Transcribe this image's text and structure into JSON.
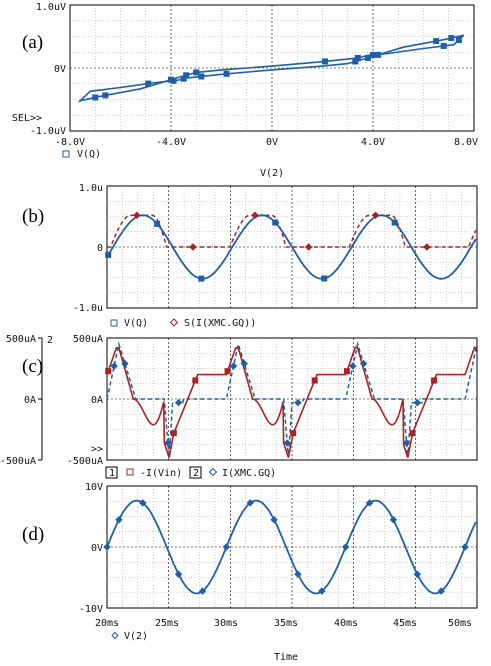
{
  "colors": {
    "blue": "#1f5fa6",
    "red": "#a82323",
    "text": "#111111",
    "axis": "#000000"
  },
  "chart_data": [
    {
      "id": "a",
      "type": "line",
      "panel_label": "(a)",
      "xlim": [
        -8,
        8
      ],
      "ylim": [
        -1,
        1
      ],
      "xticks": [
        "-8.0V",
        "-4.0V",
        "0V",
        "4.0V",
        "8.0V"
      ],
      "yticks": [
        "1.0uV",
        "0V",
        "-1.0uV"
      ],
      "xlabel": "V(2)",
      "sel_label": "SEL>>",
      "legend": [
        {
          "marker": "square-open",
          "text": "V(Q)",
          "color": "#1f5fa6"
        }
      ],
      "series": [
        {
          "name": "V(Q)",
          "color": "#1f5fa6",
          "marker": "square",
          "x": [
            7.6,
            6.8,
            5.2,
            3.8,
            3.0,
            2.0,
            0.0,
            -2.0,
            -3.4,
            -3.8,
            -4.6,
            -6.0,
            -7.2,
            -7.6,
            -6.8,
            -5.2,
            -3.8,
            -3.0,
            -2.0,
            0.0,
            2.0,
            3.4,
            3.8,
            4.6,
            6.0,
            7.2,
            7.6
          ],
          "y": [
            0.52,
            0.45,
            0.33,
            0.16,
            0.07,
            0.03,
            -0.03,
            -0.1,
            -0.16,
            -0.2,
            -0.23,
            -0.31,
            -0.37,
            -0.52,
            -0.45,
            -0.33,
            -0.16,
            -0.07,
            -0.03,
            0.03,
            0.1,
            0.16,
            0.2,
            0.23,
            0.31,
            0.37,
            0.52
          ],
          "markers_x": [
            7.1,
            6.5,
            4.2,
            3.8,
            3.3,
            -1.8,
            -2.8,
            -3.5,
            -3.9,
            -4.9,
            -7.0,
            -6.6,
            -4.0,
            -3.4,
            -3.0,
            2.1,
            3.4,
            4.0,
            6.8,
            7.4
          ]
        }
      ]
    },
    {
      "id": "b",
      "type": "line",
      "panel_label": "(b)",
      "xlim": [
        20,
        51
      ],
      "ylim": [
        -1,
        1
      ],
      "yticks": [
        "1.0u",
        "0",
        "-1.0u"
      ],
      "legend": [
        {
          "marker": "square-open",
          "text": "V(Q)",
          "color": "#1f5fa6"
        },
        {
          "marker": "diamond-open",
          "text": "S(I(XMC.GQ))",
          "color": "#a82323"
        }
      ],
      "series": [
        {
          "name": "V(Q)",
          "color": "#1f5fa6",
          "dash": "none",
          "marker": "square"
        },
        {
          "name": "S(I(XMC.GQ))",
          "color": "#a82323",
          "dash": "4 3",
          "marker": "diamond"
        }
      ]
    },
    {
      "id": "c",
      "type": "line",
      "panel_label": "(c)",
      "xlim": [
        20,
        51
      ],
      "ylim": [
        -500,
        500
      ],
      "yticks_left": [
        "500uA",
        "0A",
        "-500uA"
      ],
      "yticks_right": [
        "500uA",
        "0A",
        "-500uA"
      ],
      "axis1_label": "1",
      "axis2_label": "2",
      "sel_label": ">>",
      "legend": [
        {
          "box": "1",
          "marker": "square-open",
          "text": "-I(Vin)",
          "color": "#a82323"
        },
        {
          "box": "2",
          "marker": "diamond-open",
          "text": "I(XMC.GQ)",
          "color": "#1f5fa6"
        }
      ],
      "series": [
        {
          "name": "-I(Vin)",
          "color": "#a82323",
          "dash": "none",
          "marker": "square"
        },
        {
          "name": "I(XMC.GQ)",
          "color": "#1f5fa6",
          "dash": "4 3",
          "marker": "diamond"
        }
      ]
    },
    {
      "id": "d",
      "type": "line",
      "panel_label": "(d)",
      "xlim": [
        20,
        51
      ],
      "ylim": [
        -10,
        10
      ],
      "yticks": [
        "10V",
        "0V",
        "-10V"
      ],
      "xticks": [
        "20ms",
        "25ms",
        "30ms",
        "35ms",
        "40ms",
        "45ms",
        "50ms"
      ],
      "xlabel": "Time",
      "legend": [
        {
          "marker": "diamond-open",
          "text": "V(2)",
          "color": "#1f5fa6"
        }
      ],
      "series": [
        {
          "name": "V(2)",
          "color": "#1f5fa6",
          "amplitude": 7.6,
          "period_ms": 10,
          "marker": "diamond",
          "markers_x": [
            20,
            21,
            23,
            26,
            28,
            30,
            32,
            34,
            36,
            38,
            40,
            42,
            44,
            46,
            48,
            50
          ]
        }
      ]
    }
  ]
}
